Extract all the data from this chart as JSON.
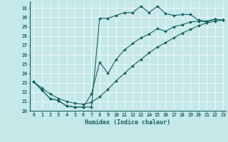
{
  "xlabel": "Humidex (Indice chaleur)",
  "xlim_min": -0.5,
  "xlim_max": 23.3,
  "ylim_min": 20.0,
  "ylim_max": 31.7,
  "yticks": [
    20,
    21,
    22,
    23,
    24,
    25,
    26,
    27,
    28,
    29,
    30,
    31
  ],
  "xticks": [
    0,
    1,
    2,
    3,
    4,
    5,
    6,
    7,
    8,
    9,
    10,
    11,
    12,
    13,
    14,
    15,
    16,
    17,
    18,
    19,
    20,
    21,
    22,
    23
  ],
  "bg_color": "#c5e8e8",
  "line_color": "#1a6060",
  "line1_x": [
    0,
    1,
    2,
    3,
    4,
    5,
    6,
    7,
    8,
    9,
    10,
    11,
    12,
    13,
    14,
    15,
    16,
    17,
    18,
    19,
    20,
    21,
    22,
    23
  ],
  "line1_y": [
    23.1,
    22.2,
    21.3,
    21.1,
    20.5,
    20.4,
    20.4,
    20.4,
    29.9,
    29.9,
    30.2,
    30.5,
    30.5,
    31.2,
    30.5,
    31.2,
    30.4,
    30.2,
    30.3,
    30.3,
    29.7,
    29.6,
    29.8,
    29.7
  ],
  "line2_x": [
    0,
    1,
    2,
    3,
    4,
    5,
    6,
    7,
    8,
    9,
    10,
    11,
    12,
    13,
    14,
    15,
    16,
    17,
    18,
    19,
    20,
    21,
    22,
    23
  ],
  "line2_y": [
    23.1,
    22.2,
    21.3,
    21.1,
    20.5,
    20.4,
    20.4,
    21.8,
    25.2,
    24.0,
    25.5,
    26.5,
    27.2,
    27.8,
    28.2,
    28.8,
    28.5,
    29.0,
    29.2,
    29.5,
    29.6,
    29.5,
    29.8,
    29.7
  ],
  "line3_x": [
    0,
    1,
    2,
    3,
    4,
    5,
    6,
    7,
    8,
    9,
    10,
    11,
    12,
    13,
    14,
    15,
    16,
    17,
    18,
    19,
    20,
    21,
    22,
    23
  ],
  "line3_y": [
    23.1,
    22.4,
    21.8,
    21.3,
    21.0,
    20.8,
    20.7,
    20.9,
    21.5,
    22.3,
    23.2,
    24.0,
    24.8,
    25.5,
    26.2,
    26.8,
    27.3,
    27.8,
    28.3,
    28.7,
    29.1,
    29.4,
    29.6,
    29.7
  ]
}
